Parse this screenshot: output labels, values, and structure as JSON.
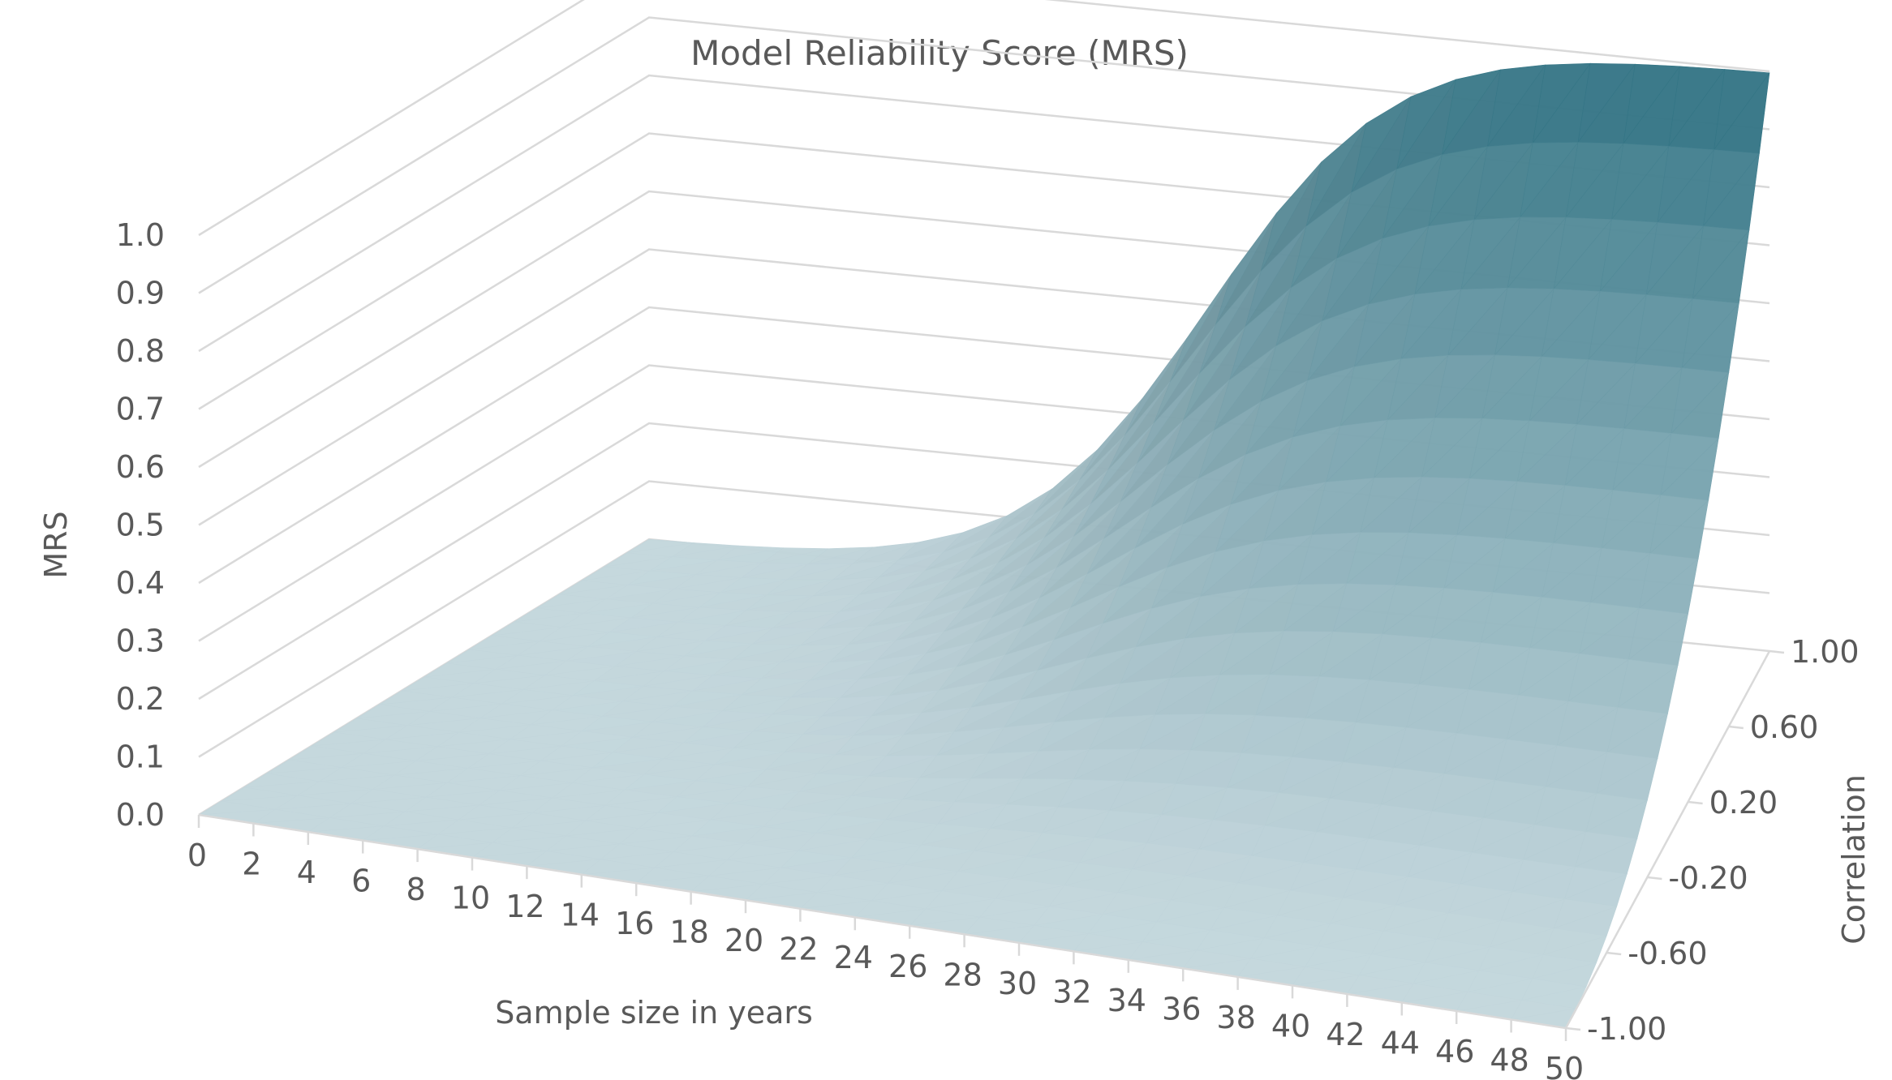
{
  "chart_data": {
    "type": "surface",
    "title": "Model Reliability Score (MRS)",
    "zlabel": "MRS",
    "xlabel": "Sample size in years",
    "ylabel": "Correlation",
    "x_ticks": [
      "0",
      "2",
      "4",
      "6",
      "8",
      "10",
      "12",
      "14",
      "16",
      "18",
      "20",
      "22",
      "24",
      "26",
      "28",
      "30",
      "32",
      "34",
      "36",
      "38",
      "40",
      "42",
      "44",
      "46",
      "48",
      "50"
    ],
    "y_ticks": [
      "-1.00",
      "-0.60",
      "-0.20",
      "0.20",
      "0.60",
      "1.00"
    ],
    "z_ticks": [
      "0.0",
      "0.1",
      "0.2",
      "0.3",
      "0.4",
      "0.5",
      "0.6",
      "0.7",
      "0.8",
      "0.9",
      "1.0"
    ],
    "xlim": [
      0,
      50
    ],
    "ylim": [
      -1.0,
      1.0
    ],
    "zlim": [
      0.0,
      1.0
    ],
    "surface": {
      "description_points": [
        {
          "x": 0,
          "y": 1.0,
          "z": 0.0
        },
        {
          "x": 20,
          "y": 1.0,
          "z": 0.37
        },
        {
          "x": 30,
          "y": 1.0,
          "z": 0.8
        },
        {
          "x": 40,
          "y": 1.0,
          "z": 0.98
        },
        {
          "x": 50,
          "y": 1.0,
          "z": 1.0
        },
        {
          "x": 50,
          "y": 0.2,
          "z": 0.62
        },
        {
          "x": 50,
          "y": 0.0,
          "z": 0.34
        },
        {
          "x": 50,
          "y": -0.4,
          "z": 0.05
        },
        {
          "x": 50,
          "y": -1.0,
          "z": 0.0
        }
      ]
    },
    "colors": {
      "low": "#c3d6dc",
      "high": "#2b6f80"
    },
    "grid": true,
    "legend": "none"
  }
}
